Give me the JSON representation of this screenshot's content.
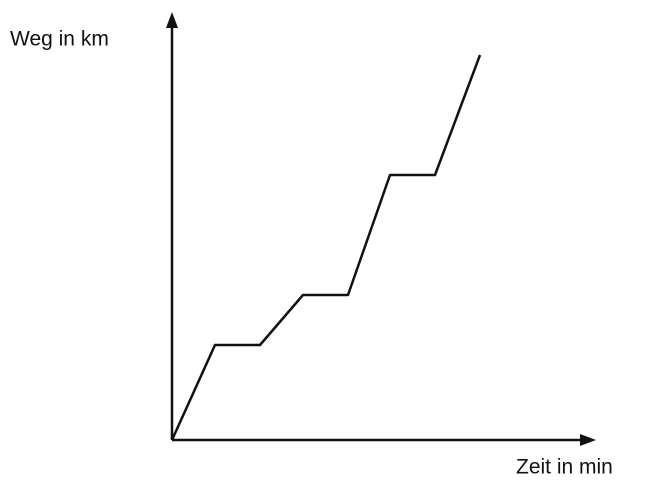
{
  "chart_data": {
    "type": "line",
    "ylabel": "Weg in km",
    "xlabel": "Zeit in min",
    "x": [
      0,
      43,
      88,
      131,
      176,
      218,
      263,
      308
    ],
    "series": [
      {
        "color": "#111111",
        "values": [
          0,
          95,
          95,
          145,
          145,
          265,
          265,
          385
        ]
      }
    ],
    "xlim": [
      0,
      418
    ],
    "ylim": [
      0,
      425
    ]
  }
}
